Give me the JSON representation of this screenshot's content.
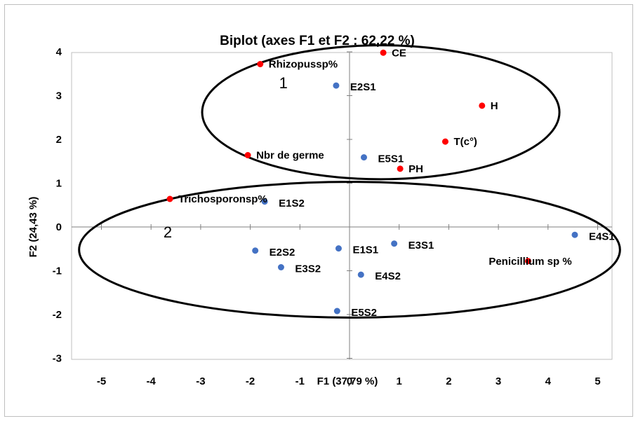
{
  "chart_data": {
    "type": "scatter",
    "title": "Biplot (axes F1 et F2 : 62,22 %)",
    "xlabel": "F1 (37,79 %)",
    "ylabel": "F2 (24,43 %)",
    "xlim": [
      -5,
      5
    ],
    "ylim": [
      -3,
      4
    ],
    "xticks": [
      -5,
      -4,
      -3,
      -2,
      -1,
      0,
      1,
      2,
      3,
      4,
      5
    ],
    "yticks": [
      -3,
      -2,
      -1,
      0,
      1,
      2,
      3,
      4
    ],
    "grid": false,
    "colors": {
      "variables": "#ff0000",
      "observations": "#4472c4"
    },
    "variables": [
      {
        "label": "CE",
        "x": 0.68,
        "y": 3.98
      },
      {
        "label": "Rhizopussp%",
        "x": -1.8,
        "y": 3.72
      },
      {
        "label": "H",
        "x": 2.67,
        "y": 2.77
      },
      {
        "label": "T(c°)",
        "x": 1.93,
        "y": 1.95
      },
      {
        "label": "Nbr de germe",
        "x": -2.05,
        "y": 1.64
      },
      {
        "label": "PH",
        "x": 1.02,
        "y": 1.33
      },
      {
        "label": "Trichosporonsp%",
        "x": -3.62,
        "y": 0.64
      },
      {
        "label": "Penicillium sp %",
        "x": 3.6,
        "y": -0.78
      }
    ],
    "observations": [
      {
        "label": "E2S1",
        "x": -0.27,
        "y": 3.23
      },
      {
        "label": "E5S1",
        "x": 0.29,
        "y": 1.59
      },
      {
        "label": "E1S2",
        "x": -1.71,
        "y": 0.58
      },
      {
        "label": "E4S1",
        "x": 4.54,
        "y": -0.18
      },
      {
        "label": "E3S1",
        "x": 0.9,
        "y": -0.38
      },
      {
        "label": "E1S1",
        "x": -0.22,
        "y": -0.49
      },
      {
        "label": "E2S2",
        "x": -1.9,
        "y": -0.54
      },
      {
        "label": "E3S2",
        "x": -1.38,
        "y": -0.92
      },
      {
        "label": "E4S2",
        "x": 0.23,
        "y": -1.09
      },
      {
        "label": "E5S2",
        "x": -0.25,
        "y": -1.92
      }
    ],
    "groups": [
      {
        "label": "1",
        "cx": 0.63,
        "cy": 2.62,
        "rx": 3.6,
        "ry": 1.53
      },
      {
        "label": "2",
        "cx": 0.0,
        "cy": -0.52,
        "rx": 5.45,
        "ry": 1.55
      }
    ]
  }
}
